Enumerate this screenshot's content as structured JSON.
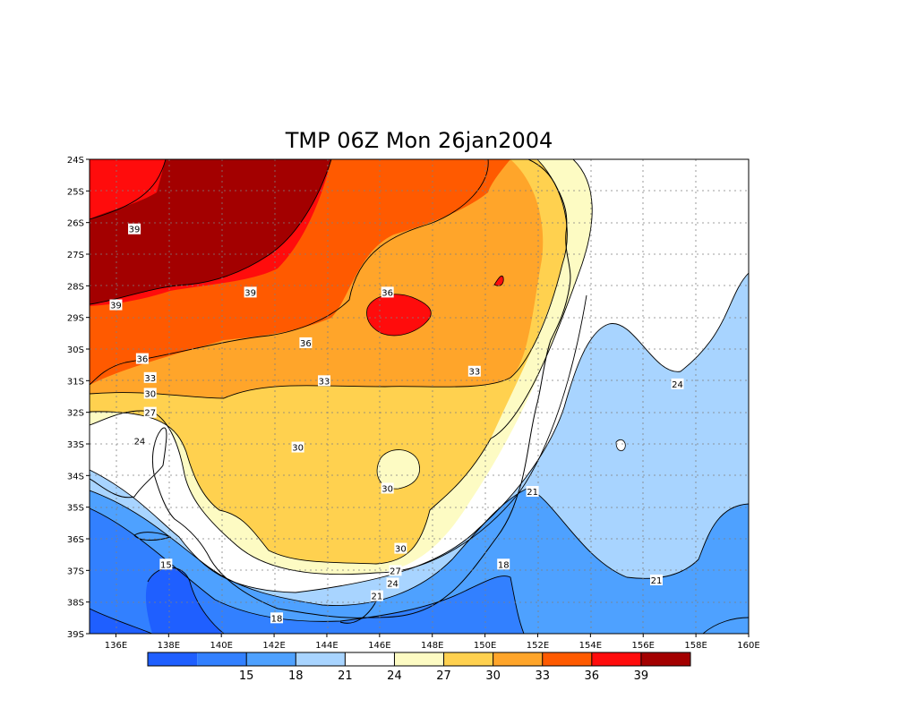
{
  "title": "TMP 06Z Mon 26jan2004",
  "map": {
    "lon_ticks": [
      "136E",
      "138E",
      "140E",
      "142E",
      "144E",
      "146E",
      "148E",
      "150E",
      "152E",
      "154E",
      "156E",
      "158E",
      "160E"
    ],
    "lat_ticks": [
      "24S",
      "25S",
      "26S",
      "27S",
      "28S",
      "29S",
      "30S",
      "31S",
      "32S",
      "33S",
      "34S",
      "35S",
      "36S",
      "37S",
      "38S",
      "39S"
    ],
    "lon_range": [
      135,
      160
    ],
    "lat_range": [
      -39,
      -24
    ],
    "grid": "dotted",
    "contour_labels": [
      {
        "text": "39",
        "lon": 136.7,
        "lat": -26.2
      },
      {
        "text": "39",
        "lon": 136.0,
        "lat": -28.6
      },
      {
        "text": "39",
        "lon": 141.1,
        "lat": -28.2
      },
      {
        "text": "36",
        "lon": 146.3,
        "lat": -28.2
      },
      {
        "text": "36",
        "lon": 143.2,
        "lat": -29.8
      },
      {
        "text": "36",
        "lon": 137.0,
        "lat": -30.3
      },
      {
        "text": "33",
        "lon": 137.3,
        "lat": -30.9
      },
      {
        "text": "33",
        "lon": 143.9,
        "lat": -31.0
      },
      {
        "text": "33",
        "lon": 149.6,
        "lat": -30.7
      },
      {
        "text": "30",
        "lon": 137.3,
        "lat": -31.4
      },
      {
        "text": "30",
        "lon": 142.9,
        "lat": -33.1
      },
      {
        "text": "30",
        "lon": 146.3,
        "lat": -34.4
      },
      {
        "text": "30",
        "lon": 146.8,
        "lat": -36.3
      },
      {
        "text": "27",
        "lon": 137.3,
        "lat": -32.0
      },
      {
        "text": "27",
        "lon": 146.6,
        "lat": -37.0
      },
      {
        "text": "24",
        "lon": 136.9,
        "lat": -32.9
      },
      {
        "text": "24",
        "lon": 146.5,
        "lat": -37.4
      },
      {
        "text": "24",
        "lon": 157.3,
        "lat": -31.1
      },
      {
        "text": "21",
        "lon": 145.9,
        "lat": -37.8
      },
      {
        "text": "21",
        "lon": 151.8,
        "lat": -34.5
      },
      {
        "text": "21",
        "lon": 156.5,
        "lat": -37.3
      },
      {
        "text": "18",
        "lon": 150.7,
        "lat": -36.8
      },
      {
        "text": "18",
        "lon": 142.1,
        "lat": -38.5
      },
      {
        "text": "15",
        "lon": 137.9,
        "lat": -36.8
      }
    ]
  },
  "colorbar": {
    "colors": [
      "#1f5fff",
      "#3280ff",
      "#4ea1ff",
      "#a8d4ff",
      "#ffffff",
      "#fdfbc3",
      "#ffd14f",
      "#ffa52a",
      "#ff5a00",
      "#ff0c0c",
      "#a30000"
    ],
    "labels": [
      "15",
      "18",
      "21",
      "24",
      "27",
      "30",
      "33",
      "36",
      "39"
    ]
  }
}
